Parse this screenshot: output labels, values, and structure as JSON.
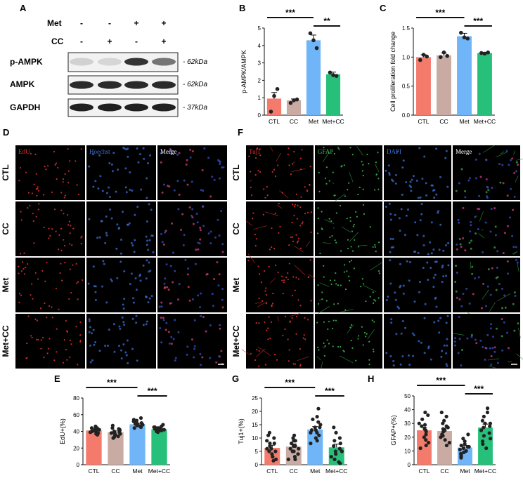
{
  "panels": {
    "A": "A",
    "B": "B",
    "C": "C",
    "D": "D",
    "E": "E",
    "F": "F",
    "G": "G",
    "H": "H"
  },
  "western_blot": {
    "conditions": [
      {
        "label": "Met",
        "signs": [
          "-",
          "-",
          "+",
          "+"
        ]
      },
      {
        "label": "CC",
        "signs": [
          "-",
          "+",
          "-",
          "+"
        ]
      }
    ],
    "bands": [
      {
        "label": "p-AMPK",
        "kda": "- 62kDa",
        "intensity": [
          0.12,
          0.1,
          0.85,
          0.55
        ]
      },
      {
        "label": "AMPK",
        "kda": "- 62kDa",
        "intensity": [
          0.9,
          0.9,
          0.9,
          0.9
        ]
      },
      {
        "label": "GAPDH",
        "kda": "- 37kDa",
        "intensity": [
          0.95,
          0.95,
          0.95,
          0.95
        ]
      }
    ]
  },
  "microscopy_D": {
    "channels": [
      "EdU",
      "Hoechst",
      "Merge"
    ],
    "channel_colors": [
      "#e0302a",
      "#3a6fd8",
      "#ffffff"
    ],
    "rows": [
      "CTL",
      "CC",
      "Met",
      "Met+CC"
    ]
  },
  "microscopy_F": {
    "channels": [
      "Tuj1",
      "GFAP",
      "DAPI",
      "Merge"
    ],
    "channel_colors": [
      "#e0302a",
      "#39b54a",
      "#3a6fd8",
      "#ffffff"
    ],
    "rows": [
      "CTL",
      "CC",
      "Met",
      "Met+CC"
    ]
  },
  "colors": {
    "CTL": "#f47b6c",
    "CC": "#c9aba3",
    "Met": "#6fb5f7",
    "Met+CC": "#27c07a"
  },
  "chart_data": [
    {
      "id": "B",
      "type": "bar",
      "categories": [
        "CTL",
        "CC",
        "Met",
        "Met+CC"
      ],
      "values": [
        0.95,
        0.85,
        4.3,
        2.35
      ],
      "errors": [
        0.35,
        0.08,
        0.3,
        0.12
      ],
      "points": [
        [
          0.2,
          1.1,
          1.5
        ],
        [
          0.7,
          0.85,
          0.9
        ],
        [
          4.7,
          4.3,
          3.85
        ],
        [
          2.45,
          2.3,
          2.25
        ]
      ],
      "ylabel": "p-AMPK/AMPK",
      "ylim": [
        0,
        5
      ],
      "yticks": [
        "0",
        "1",
        "2",
        "3",
        "4",
        "5"
      ],
      "sig": [
        {
          "from": 0,
          "to": 2,
          "label": "***"
        },
        {
          "from": 2,
          "to": 3,
          "label": "**"
        }
      ]
    },
    {
      "id": "C",
      "type": "bar",
      "categories": [
        "CTL",
        "CC",
        "Met",
        "Met+CC"
      ],
      "values": [
        1.0,
        1.03,
        1.36,
        1.07
      ],
      "errors": [
        0.04,
        0.04,
        0.05,
        0.01
      ],
      "points": [
        [
          0.95,
          1.04,
          1.01
        ],
        [
          1.0,
          1.08,
          1.02
        ],
        [
          1.42,
          1.34,
          1.32
        ],
        [
          1.07,
          1.06,
          1.08
        ]
      ],
      "ylabel": "Cell proliferation fold change",
      "ylim": [
        0,
        1.5
      ],
      "yticks": [
        "0.0",
        "0.5",
        "1.0",
        "1.5"
      ],
      "sig": [
        {
          "from": 0,
          "to": 2,
          "label": "***"
        },
        {
          "from": 2,
          "to": 3,
          "label": "***"
        }
      ]
    },
    {
      "id": "E",
      "type": "bar",
      "categories": [
        "CTL",
        "CC",
        "Met",
        "Met+CC"
      ],
      "values": [
        41,
        39,
        48.5,
        42.5
      ],
      "errors": [
        1.2,
        1.5,
        1.3,
        0.9
      ],
      "points": [
        [
          46,
          44,
          43,
          42,
          41,
          40,
          39,
          38,
          37,
          36,
          42,
          40,
          44,
          39,
          41
        ],
        [
          47,
          44,
          43,
          41,
          39,
          38,
          36,
          34,
          33,
          32,
          40,
          37,
          42,
          38,
          35
        ],
        [
          56,
          54,
          52,
          51,
          50,
          49,
          48,
          47,
          46,
          44,
          53,
          50,
          45,
          49,
          48
        ],
        [
          48,
          46,
          45,
          44,
          43,
          42,
          42,
          41,
          40,
          39,
          44,
          43,
          42,
          41,
          45
        ]
      ],
      "ylabel": "EdU+(%)",
      "ylim": [
        0,
        80
      ],
      "yticks": [
        "0",
        "20",
        "40",
        "60",
        "80"
      ],
      "sig": [
        {
          "from": 0,
          "to": 2,
          "label": "***"
        },
        {
          "from": 2,
          "to": 3,
          "label": "***"
        }
      ]
    },
    {
      "id": "G",
      "type": "bar",
      "categories": [
        "CTL",
        "CC",
        "Met",
        "Met+CC"
      ],
      "values": [
        6.3,
        6.8,
        13.2,
        6.5
      ],
      "errors": [
        1.0,
        1.0,
        1.1,
        1.2
      ],
      "points": [
        [
          12,
          11,
          10,
          9,
          8,
          7,
          6,
          5,
          5,
          4,
          3,
          2,
          1.5,
          8,
          6
        ],
        [
          11,
          10,
          9,
          9,
          8,
          7,
          6,
          6,
          5,
          4,
          3,
          2,
          2,
          7,
          5
        ],
        [
          21,
          18,
          17,
          16,
          15,
          14,
          13,
          13,
          12,
          11,
          10,
          9,
          8,
          14,
          12
        ],
        [
          14,
          12,
          10,
          9,
          8,
          7,
          6,
          5,
          4,
          3,
          2,
          1,
          0.5,
          6,
          5
        ]
      ],
      "ylabel": "Tuj1+(%)",
      "ylim": [
        0,
        25
      ],
      "yticks": [
        "0",
        "5",
        "10",
        "15",
        "20",
        "25"
      ],
      "sig": [
        {
          "from": 0,
          "to": 2,
          "label": "***"
        },
        {
          "from": 2,
          "to": 3,
          "label": "***"
        }
      ]
    },
    {
      "id": "H",
      "type": "bar",
      "categories": [
        "CTL",
        "CC",
        "Met",
        "Met+CC"
      ],
      "values": [
        25,
        24.5,
        12.5,
        27
      ],
      "errors": [
        2.3,
        2.0,
        1.5,
        2.5
      ],
      "points": [
        [
          38,
          36,
          33,
          30,
          28,
          26,
          25,
          24,
          22,
          20,
          18,
          16,
          14,
          12,
          29
        ],
        [
          38,
          35,
          32,
          30,
          28,
          26,
          24,
          22,
          21,
          20,
          18,
          16,
          14,
          25,
          27
        ],
        [
          22,
          19,
          17,
          15,
          14,
          13,
          12,
          11,
          10,
          9,
          8,
          7,
          6,
          5,
          13
        ],
        [
          41,
          38,
          35,
          32,
          30,
          28,
          27,
          25,
          23,
          21,
          19,
          17,
          15,
          12,
          30
        ]
      ],
      "ylabel": "GFAP+(%)",
      "ylim": [
        0,
        50
      ],
      "yticks": [
        "0",
        "10",
        "20",
        "30",
        "40",
        "50"
      ],
      "sig": [
        {
          "from": 0,
          "to": 2,
          "label": "***"
        },
        {
          "from": 2,
          "to": 3,
          "label": "***"
        }
      ]
    }
  ]
}
